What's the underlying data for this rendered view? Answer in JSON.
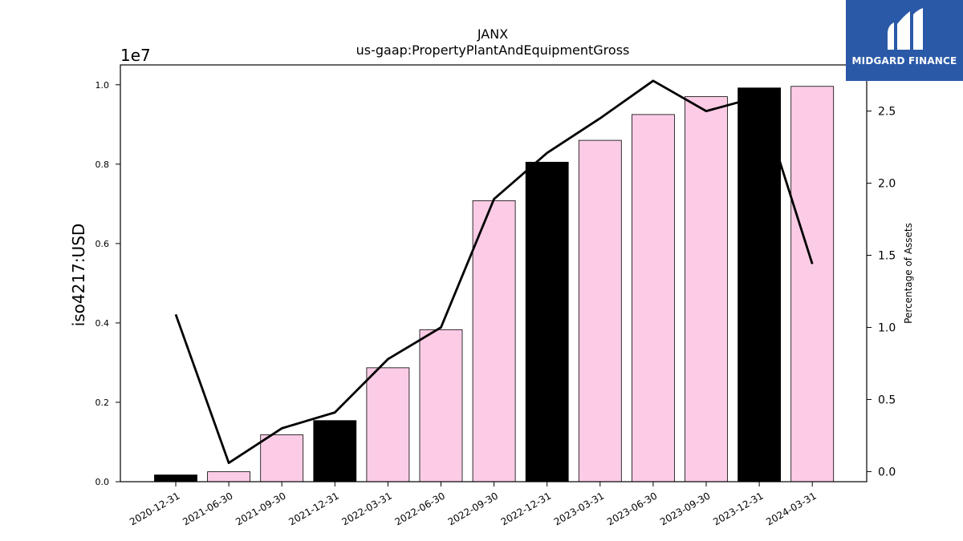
{
  "chart_data": {
    "type": "bar",
    "title": "JANX",
    "subtitle": "us-gaap:PropertyPlantAndEquipmentGross",
    "ylabel": "iso4217:USD",
    "y_offset_label": "1e7",
    "y2label": "Percentage of Assets",
    "ylim": [
      0,
      10500000
    ],
    "y2lim": [
      -0.07,
      2.82
    ],
    "yticks": [
      "0.0",
      "0.2",
      "0.4",
      "0.6",
      "0.8",
      "1.0"
    ],
    "y2ticks": [
      "0.0",
      "0.5",
      "1.0",
      "1.5",
      "2.0",
      "2.5"
    ],
    "grid": false,
    "categories": [
      "2020-12-31",
      "2021-06-30",
      "2021-09-30",
      "2021-12-31",
      "2022-03-31",
      "2022-06-30",
      "2022-09-30",
      "2022-12-31",
      "2023-03-31",
      "2023-06-30",
      "2023-09-30",
      "2023-12-31",
      "2024-03-31"
    ],
    "series": [
      {
        "type": "bar",
        "axis": "left",
        "values": [
          170000,
          250000,
          1180000,
          1540000,
          2870000,
          3830000,
          7080000,
          8050000,
          8600000,
          9250000,
          9700000,
          9920000,
          9960000
        ],
        "colors": [
          "#000000",
          "#fccce6",
          "#fccce6",
          "#000000",
          "#fccce6",
          "#fccce6",
          "#fccce6",
          "#000000",
          "#fccce6",
          "#fccce6",
          "#fccce6",
          "#000000",
          "#fccce6"
        ]
      },
      {
        "type": "line",
        "axis": "right",
        "color": "#000000",
        "values": [
          1.09,
          0.06,
          0.3,
          0.41,
          0.78,
          1.0,
          1.89,
          2.21,
          2.45,
          2.71,
          2.5,
          2.6,
          1.44
        ]
      }
    ]
  },
  "logo": {
    "text": "MIDGARD FINANCE"
  }
}
